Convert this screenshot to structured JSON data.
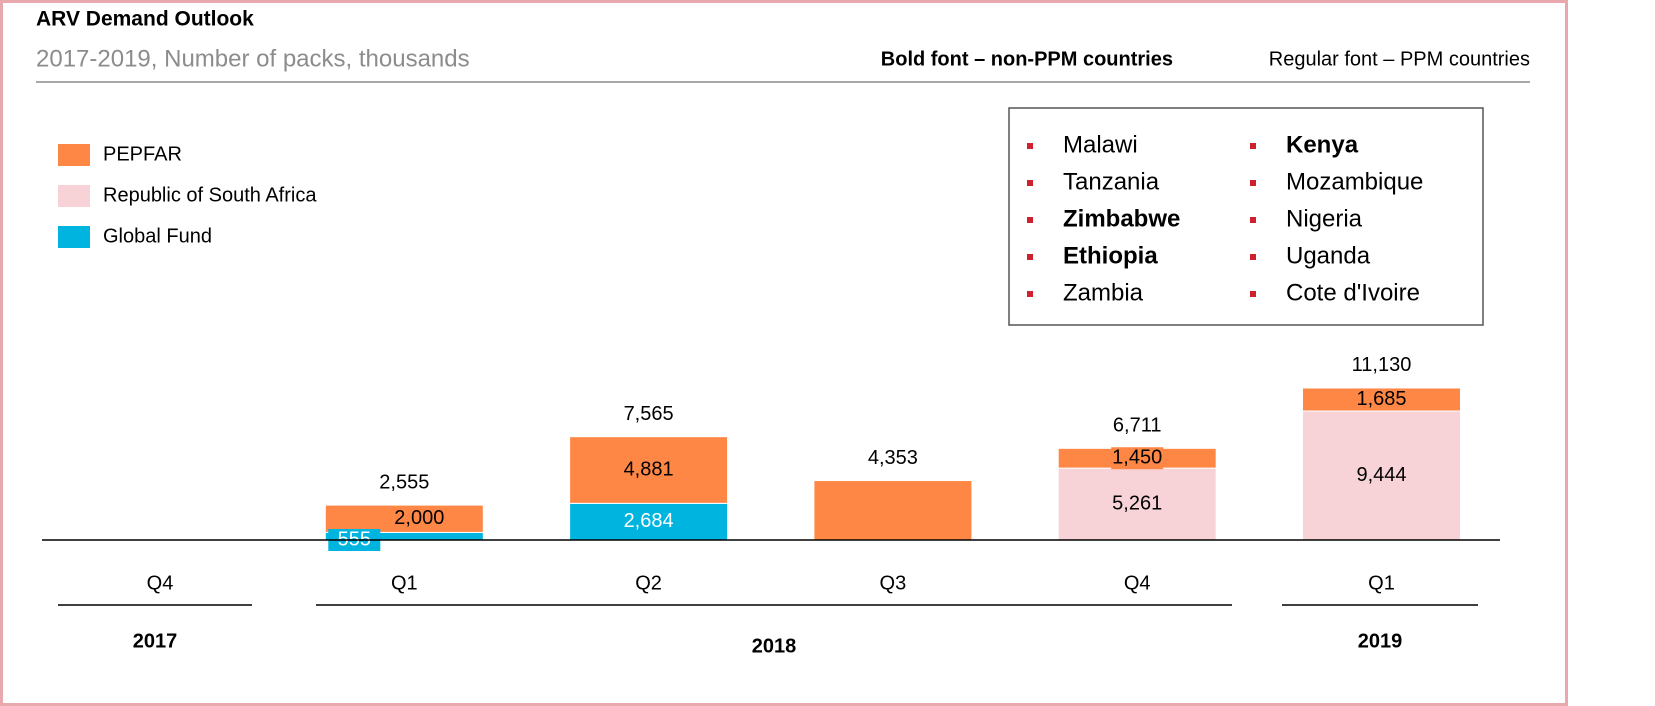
{
  "chart_data": {
    "type": "stacked-bar",
    "title": "ARV Demand Outlook",
    "subtitle": "2017-2019, Number of packs, thousands",
    "note_bold": "Bold font – non-PPM countries",
    "note_regular": "Regular font – PPM countries",
    "categories": [
      "Q4",
      "Q1",
      "Q2",
      "Q3",
      "Q4",
      "Q1"
    ],
    "years": [
      "2017",
      "2018",
      "2019"
    ],
    "series": [
      {
        "name": "Global Fund",
        "color": "#00b4e0",
        "label_color": "#ffffff",
        "values": [
          null,
          555,
          2684,
          null,
          null,
          null
        ],
        "value_labels": [
          null,
          "555",
          "2,684",
          null,
          null,
          null
        ]
      },
      {
        "name": "Republic of South Africa",
        "color": "#f7d3d8",
        "label_color": "#000000",
        "values": [
          null,
          null,
          null,
          null,
          5261,
          9444
        ],
        "value_labels": [
          null,
          null,
          null,
          null,
          "5,261",
          "9,444"
        ]
      },
      {
        "name": "PEPFAR",
        "color": "#ff8746",
        "label_color": "#000000",
        "values": [
          null,
          2000,
          4881,
          4353,
          1450,
          1685
        ],
        "value_labels": [
          null,
          "2,000",
          "4,881",
          null,
          "1,450",
          "1,685"
        ]
      }
    ],
    "totals": {
      "values": [
        null,
        2555,
        7565,
        4353,
        6711,
        11130
      ],
      "value_labels": [
        null,
        "2,555",
        "7,565",
        "4,353",
        "6,711",
        "11,130"
      ]
    },
    "legend_order": [
      2,
      1,
      0
    ],
    "countries": [
      {
        "name": "Malawi",
        "bold": false
      },
      {
        "name": "Tanzania",
        "bold": false
      },
      {
        "name": "Zimbabwe",
        "bold": true
      },
      {
        "name": "Ethiopia",
        "bold": true
      },
      {
        "name": "Zambia",
        "bold": false
      },
      {
        "name": "Kenya",
        "bold": true
      },
      {
        "name": "Mozambique",
        "bold": false
      },
      {
        "name": "Nigeria",
        "bold": false
      },
      {
        "name": "Uganda",
        "bold": false
      },
      {
        "name": "Cote d'Ivoire",
        "bold": false
      }
    ]
  }
}
